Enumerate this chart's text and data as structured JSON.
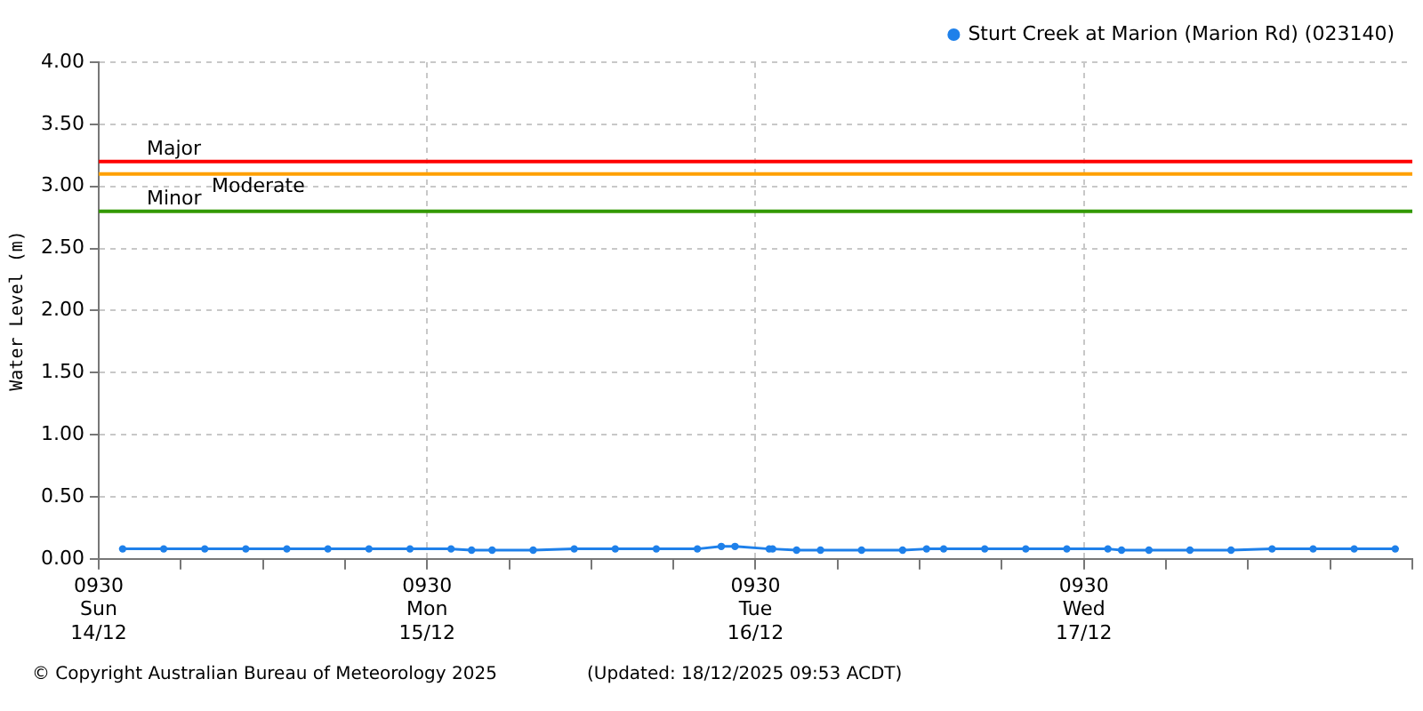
{
  "chart_data": {
    "type": "line",
    "ylabel": "Water Level (m)",
    "x": [
      "2025-12-14T11:15",
      "2025-12-14T14:15",
      "2025-12-14T17:15",
      "2025-12-14T20:15",
      "2025-12-14T23:15",
      "2025-12-15T02:15",
      "2025-12-15T05:15",
      "2025-12-15T08:15",
      "2025-12-15T11:15",
      "2025-12-15T12:45",
      "2025-12-15T14:15",
      "2025-12-15T17:15",
      "2025-12-15T20:15",
      "2025-12-15T23:15",
      "2025-12-16T02:15",
      "2025-12-16T05:15",
      "2025-12-16T07:00",
      "2025-12-16T08:00",
      "2025-12-16T10:30",
      "2025-12-16T10:45",
      "2025-12-16T12:30",
      "2025-12-16T14:15",
      "2025-12-16T17:15",
      "2025-12-16T20:15",
      "2025-12-16T22:00",
      "2025-12-16T23:15",
      "2025-12-17T02:15",
      "2025-12-17T05:15",
      "2025-12-17T08:15",
      "2025-12-17T11:15",
      "2025-12-17T12:15",
      "2025-12-17T14:15",
      "2025-12-17T17:15",
      "2025-12-17T20:15",
      "2025-12-17T23:15",
      "2025-12-18T02:15",
      "2025-12-18T05:15",
      "2025-12-18T08:15"
    ],
    "series": [
      {
        "name": "Sturt Creek at Marion (Marion Rd) (023140)",
        "color": "#1e80ea",
        "values": [
          0.08,
          0.08,
          0.08,
          0.08,
          0.08,
          0.08,
          0.08,
          0.08,
          0.08,
          0.07,
          0.07,
          0.07,
          0.08,
          0.08,
          0.08,
          0.08,
          0.1,
          0.1,
          0.08,
          0.08,
          0.07,
          0.07,
          0.07,
          0.07,
          0.08,
          0.08,
          0.08,
          0.08,
          0.08,
          0.08,
          0.07,
          0.07,
          0.07,
          0.07,
          0.08,
          0.08,
          0.08,
          0.08
        ]
      }
    ],
    "xlim": [
      "2025-12-14T09:30",
      "2025-12-18T09:30"
    ],
    "xticks": [
      {
        "value": "2025-12-14T09:30",
        "label": "0930\nSun\n14/12"
      },
      {
        "value": "2025-12-14T15:30",
        "label": null
      },
      {
        "value": "2025-12-14T21:30",
        "label": null
      },
      {
        "value": "2025-12-15T03:30",
        "label": null
      },
      {
        "value": "2025-12-15T09:30",
        "label": "0930\nMon\n15/12"
      },
      {
        "value": "2025-12-15T15:30",
        "label": null
      },
      {
        "value": "2025-12-15T21:30",
        "label": null
      },
      {
        "value": "2025-12-16T03:30",
        "label": null
      },
      {
        "value": "2025-12-16T09:30",
        "label": "0930\nTue\n16/12"
      },
      {
        "value": "2025-12-16T15:30",
        "label": null
      },
      {
        "value": "2025-12-16T21:30",
        "label": null
      },
      {
        "value": "2025-12-17T03:30",
        "label": null
      },
      {
        "value": "2025-12-17T09:30",
        "label": "0930\nWed\n17/12"
      },
      {
        "value": "2025-12-17T15:30",
        "label": null
      },
      {
        "value": "2025-12-17T21:30",
        "label": null
      },
      {
        "value": "2025-12-18T03:30",
        "label": null
      },
      {
        "value": "2025-12-18T09:30",
        "label": null
      }
    ],
    "ylim": [
      0,
      4
    ],
    "yticks": [
      {
        "value": 0,
        "label": "0.00"
      },
      {
        "value": 0.5,
        "label": "0.50"
      },
      {
        "value": 1,
        "label": "1.00"
      },
      {
        "value": 1.5,
        "label": "1.50"
      },
      {
        "value": 2,
        "label": "2.00"
      },
      {
        "value": 2.5,
        "label": "2.50"
      },
      {
        "value": 3,
        "label": "3.00"
      },
      {
        "value": 3.5,
        "label": "3.50"
      },
      {
        "value": 4,
        "label": "4.00"
      }
    ],
    "ref_lines": [
      {
        "axis": "y",
        "value": 3.2,
        "label": "Major",
        "color": "#ff0000"
      },
      {
        "axis": "y",
        "value": 3.1,
        "label": "Moderate",
        "color": "#ffa000"
      },
      {
        "axis": "y",
        "value": 2.8,
        "label": "Minor",
        "color": "#339900"
      }
    ],
    "grid": true,
    "legend": "top right",
    "marker": "circle",
    "line_style": "solid",
    "annotations": [
      "© Copyright Australian Bureau of Meteorology 2025",
      "(Updated: 18/12/2025 09:53 ACDT)"
    ]
  }
}
